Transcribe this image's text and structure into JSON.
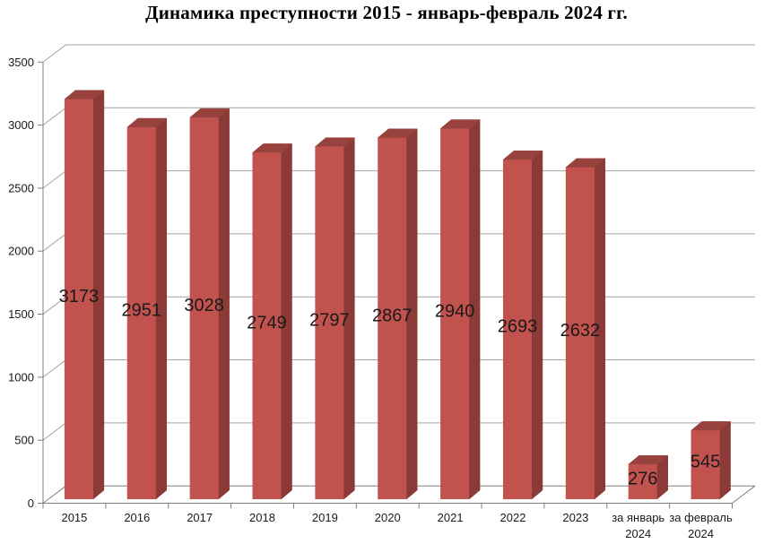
{
  "title": "Динамика преступности 2015 - январь-февраль 2024 гг.",
  "chart_data": {
    "type": "bar",
    "style": "3d-column",
    "title": "Динамика преступности 2015 - январь-февраль 2024 гг.",
    "categories": [
      "2015",
      "2016",
      "2017",
      "2018",
      "2019",
      "2020",
      "2021",
      "2022",
      "2023",
      "за январь\n2024",
      "за февраль\n2024"
    ],
    "values": [
      3173,
      2951,
      3028,
      2749,
      2797,
      2867,
      2940,
      2693,
      2632,
      276,
      545
    ],
    "data_labels": [
      3173,
      2951,
      3028,
      2749,
      2797,
      2867,
      2940,
      2693,
      2632,
      276,
      545
    ],
    "xlabel": "",
    "ylabel": "",
    "ylim": [
      0,
      3500
    ],
    "ytick_step": 500,
    "yticks": [
      "0",
      "500",
      "1000",
      "1500",
      "2000",
      "2500",
      "3000",
      "3500"
    ],
    "grid": true,
    "legend": false,
    "colors": {
      "bar_front": "#C2524E",
      "bar_top": "#98423E",
      "bar_side": "#8C3A37",
      "gridline": "#A3A3A3",
      "axis": "#808080",
      "text": "#1A1A1A",
      "background": "#FFFFFF"
    }
  }
}
